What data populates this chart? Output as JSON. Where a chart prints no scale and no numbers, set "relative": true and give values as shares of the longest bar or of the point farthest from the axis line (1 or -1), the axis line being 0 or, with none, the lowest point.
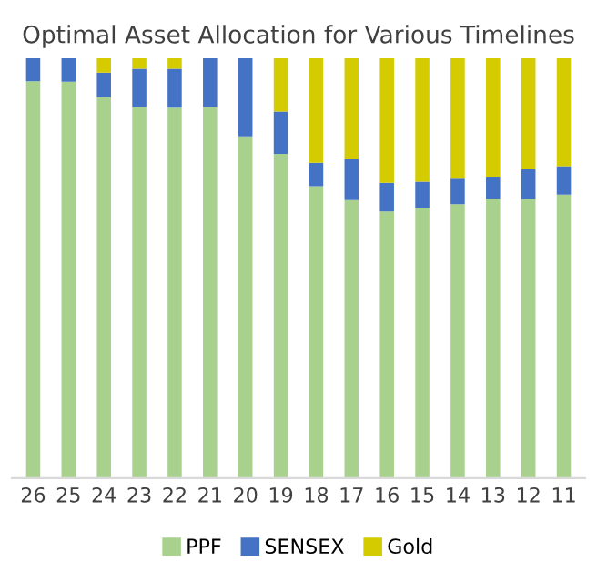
{
  "chart_data": {
    "type": "bar",
    "title": "Optimal Asset Allocation for Various Timelines",
    "stacked": true,
    "relative": true,
    "legend": "bottom",
    "categories": [
      "26",
      "25",
      "24",
      "23",
      "22",
      "21",
      "20",
      "19",
      "18",
      "17",
      "16",
      "15",
      "14",
      "13",
      "12",
      "11"
    ],
    "series": [
      {
        "name": "PPF",
        "color": "#a9d18e",
        "values": [
          0.945,
          0.944,
          0.907,
          0.884,
          0.882,
          0.884,
          0.814,
          0.772,
          0.695,
          0.662,
          0.635,
          0.644,
          0.652,
          0.665,
          0.664,
          0.675
        ]
      },
      {
        "name": "SENSEX",
        "color": "#4472c4",
        "values": [
          0.055,
          0.056,
          0.059,
          0.091,
          0.093,
          0.116,
          0.186,
          0.101,
          0.056,
          0.098,
          0.068,
          0.062,
          0.063,
          0.053,
          0.072,
          0.068
        ]
      },
      {
        "name": "Gold",
        "color": "#d4cc00",
        "values": [
          0,
          0,
          0.034,
          0.025,
          0.025,
          0,
          0,
          0.127,
          0.249,
          0.24,
          0.297,
          0.294,
          0.285,
          0.282,
          0.264,
          0.257
        ]
      }
    ]
  }
}
